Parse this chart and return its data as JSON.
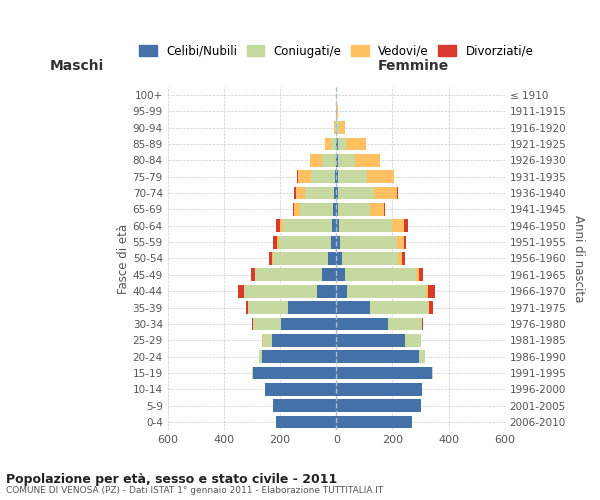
{
  "age_groups": [
    "0-4",
    "5-9",
    "10-14",
    "15-19",
    "20-24",
    "25-29",
    "30-34",
    "35-39",
    "40-44",
    "45-49",
    "50-54",
    "55-59",
    "60-64",
    "65-69",
    "70-74",
    "75-79",
    "80-84",
    "85-89",
    "90-94",
    "95-99",
    "100+"
  ],
  "birth_years": [
    "2006-2010",
    "2001-2005",
    "1996-2000",
    "1991-1995",
    "1986-1990",
    "1981-1985",
    "1976-1980",
    "1971-1975",
    "1966-1970",
    "1961-1965",
    "1956-1960",
    "1951-1955",
    "1946-1950",
    "1941-1945",
    "1936-1940",
    "1931-1935",
    "1926-1930",
    "1921-1925",
    "1916-1920",
    "1911-1915",
    "≤ 1910"
  ],
  "male": {
    "celibi": [
      215,
      225,
      255,
      295,
      265,
      230,
      195,
      170,
      70,
      50,
      30,
      20,
      15,
      10,
      8,
      5,
      0,
      0,
      0,
      0,
      0
    ],
    "coniugati": [
      0,
      0,
      0,
      5,
      10,
      30,
      100,
      145,
      260,
      240,
      195,
      185,
      175,
      120,
      105,
      85,
      50,
      20,
      5,
      0,
      0
    ],
    "vedovi": [
      0,
      0,
      0,
      0,
      0,
      5,
      0,
      0,
      0,
      0,
      5,
      5,
      10,
      20,
      30,
      45,
      45,
      20,
      3,
      0,
      0
    ],
    "divorziati": [
      0,
      0,
      0,
      0,
      0,
      0,
      5,
      5,
      20,
      15,
      10,
      15,
      15,
      5,
      8,
      5,
      0,
      0,
      0,
      0,
      0
    ]
  },
  "female": {
    "nubili": [
      270,
      300,
      305,
      340,
      295,
      245,
      185,
      120,
      40,
      30,
      20,
      15,
      10,
      5,
      5,
      5,
      5,
      5,
      0,
      0,
      0
    ],
    "coniugate": [
      0,
      0,
      0,
      5,
      20,
      55,
      120,
      205,
      280,
      255,
      200,
      200,
      190,
      115,
      130,
      105,
      60,
      30,
      10,
      0,
      0
    ],
    "vedove": [
      0,
      0,
      0,
      0,
      0,
      0,
      0,
      5,
      5,
      10,
      15,
      25,
      40,
      50,
      80,
      95,
      90,
      70,
      20,
      5,
      0
    ],
    "divorziate": [
      0,
      0,
      0,
      0,
      0,
      0,
      5,
      15,
      25,
      15,
      10,
      10,
      15,
      5,
      5,
      0,
      0,
      0,
      0,
      0,
      0
    ]
  },
  "color_celibi": "#4472a8",
  "color_coniugati": "#c5d9a0",
  "color_vedovi": "#ffc062",
  "color_divorziati": "#d73b2e",
  "title": "Popolazione per età, sesso e stato civile - 2011",
  "subtitle": "COMUNE DI VENOSA (PZ) - Dati ISTAT 1° gennaio 2011 - Elaborazione TUTTITALIA.IT",
  "xlabel_left": "Maschi",
  "xlabel_right": "Femmine",
  "ylabel_left": "Fasce di età",
  "ylabel_right": "Anni di nascita",
  "xlim": 600,
  "bg_color": "#ffffff",
  "grid_color": "#cccccc"
}
